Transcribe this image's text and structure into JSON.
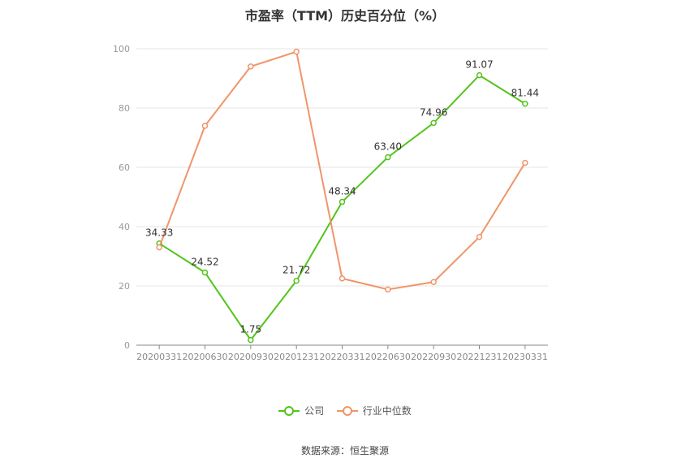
{
  "title": "市盈率（TTM）历史百分位（%）",
  "source": "数据来源：恒生聚源",
  "chart_data": {
    "type": "line",
    "title": "市盈率（TTM）历史百分位（%）",
    "xlabel": "",
    "ylabel": "",
    "ylim": [
      0,
      100
    ],
    "yticks": [
      0,
      20,
      40,
      60,
      80,
      100
    ],
    "grid": true,
    "legend_position": "bottom-center",
    "categories": [
      "20200331",
      "20200630",
      "20200930",
      "20201231",
      "20220331",
      "20220630",
      "20220930",
      "20221231",
      "20230331"
    ],
    "series": [
      {
        "name": "公司",
        "color": "#52c41a",
        "values": [
          34.33,
          24.52,
          1.75,
          21.72,
          48.34,
          63.4,
          74.96,
          91.07,
          81.44
        ],
        "labels": [
          "34.33",
          "24.52",
          "1.75",
          "21.72",
          "48.34",
          "63.40",
          "74.96",
          "91.07",
          "81.44"
        ]
      },
      {
        "name": "行业中位数",
        "color": "#f0956a",
        "values": [
          33,
          74,
          94,
          99,
          22.5,
          18.8,
          21.3,
          36.5,
          61.5
        ]
      }
    ]
  }
}
